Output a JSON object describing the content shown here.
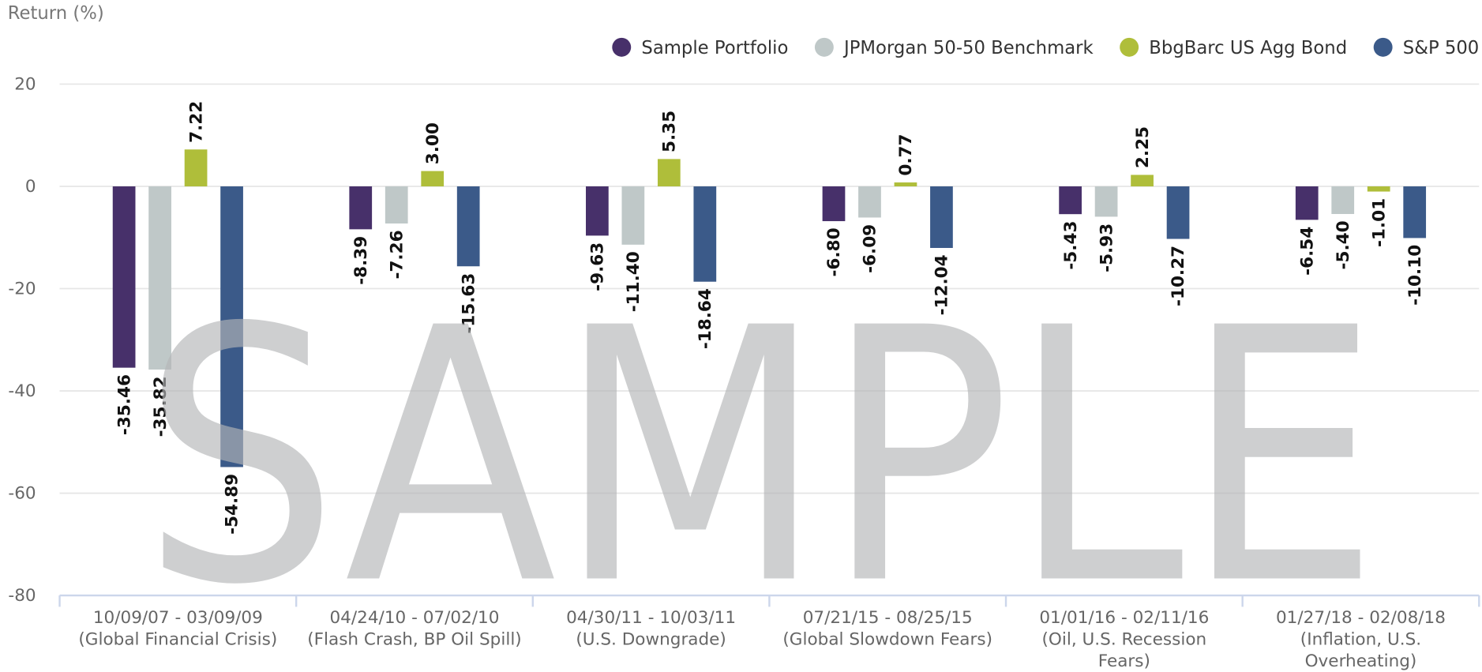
{
  "chart_data": {
    "type": "bar",
    "y_axis_title": "Return (%)",
    "watermark": "SAMPLE",
    "categories": [
      [
        "10/09/07 - 03/09/09",
        "(Global Financial Crisis)"
      ],
      [
        "04/24/10 - 07/02/10",
        "(Flash Crash, BP Oil Spill)"
      ],
      [
        "04/30/11 - 10/03/11",
        "(U.S. Downgrade)"
      ],
      [
        "07/21/15 - 08/25/15",
        "(Global Slowdown Fears)"
      ],
      [
        "01/01/16 - 02/11/16",
        "(Oil, U.S. Recession Fears)"
      ],
      [
        "01/27/18 - 02/08/18",
        "(Inflation, U.S. Overheating)"
      ]
    ],
    "series": [
      {
        "name": "Sample Portfolio",
        "color": "#47306a",
        "values": [
          -35.46,
          -8.39,
          -9.63,
          -6.8,
          -5.43,
          -6.54
        ],
        "value_labels": [
          "-35.46",
          "-8.39",
          "-9.63",
          "-6.80",
          "-5.43",
          "-6.54"
        ]
      },
      {
        "name": "JPMorgan 50-50 Benchmark",
        "color": "#bfc8c8",
        "values": [
          -35.82,
          -7.26,
          -11.4,
          -6.09,
          -5.93,
          -5.4
        ],
        "value_labels": [
          "-35.82",
          "-7.26",
          "-11.40",
          "-6.09",
          "-5.93",
          "-5.40"
        ]
      },
      {
        "name": "BbgBarc US Agg Bond",
        "color": "#afbe3a",
        "values": [
          7.22,
          3.0,
          5.35,
          0.77,
          2.25,
          -1.01
        ],
        "value_labels": [
          "7.22",
          "3.00",
          "5.35",
          "0.77",
          "2.25",
          "-1.01"
        ]
      },
      {
        "name": "S&P 500",
        "color": "#3b5a89",
        "values": [
          -54.89,
          -15.63,
          -18.64,
          -12.04,
          -10.27,
          -10.1
        ],
        "value_labels": [
          "-54.89",
          "-15.63",
          "-18.64",
          "-12.04",
          "-10.27",
          "-10.10"
        ]
      }
    ],
    "ylim": [
      -80,
      20
    ],
    "yticks": [
      -80,
      -60,
      -40,
      -20,
      0,
      20
    ],
    "grid": true,
    "legend": "top-right"
  }
}
